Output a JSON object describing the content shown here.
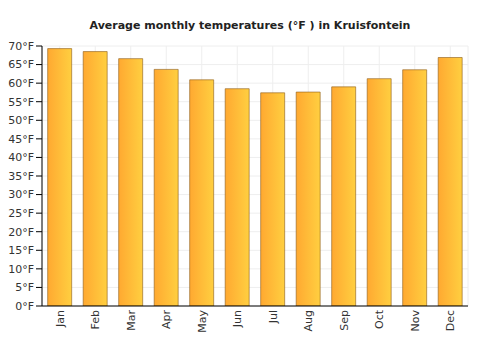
{
  "chart_data": {
    "type": "bar",
    "title": "Average monthly temperatures (°F ) in Kruisfontein",
    "categories": [
      "Jan",
      "Feb",
      "Mar",
      "Apr",
      "May",
      "Jun",
      "Jul",
      "Aug",
      "Sep",
      "Oct",
      "Nov",
      "Dec"
    ],
    "values": [
      69.3,
      68.5,
      66.6,
      63.7,
      60.9,
      58.5,
      57.4,
      57.6,
      59.0,
      61.2,
      63.6,
      66.9
    ],
    "color": "#ffa931",
    "ylim": [
      0,
      70
    ],
    "yticks": [
      {
        "value": 0,
        "label": "0°F"
      },
      {
        "value": 5,
        "label": "5°F"
      },
      {
        "value": 10,
        "label": "10°F"
      },
      {
        "value": 15,
        "label": "15°F"
      },
      {
        "value": 20,
        "label": "20°F"
      },
      {
        "value": 25,
        "label": "25°F"
      },
      {
        "value": 30,
        "label": "30°F"
      },
      {
        "value": 35,
        "label": "35°F"
      },
      {
        "value": 40,
        "label": "40°F"
      },
      {
        "value": 45,
        "label": "45°F"
      },
      {
        "value": 50,
        "label": "50°F"
      },
      {
        "value": 55,
        "label": "55°F"
      },
      {
        "value": 60,
        "label": "60°F"
      },
      {
        "value": 65,
        "label": "65°F"
      },
      {
        "value": 70,
        "label": "70°F"
      }
    ],
    "grid": true
  }
}
